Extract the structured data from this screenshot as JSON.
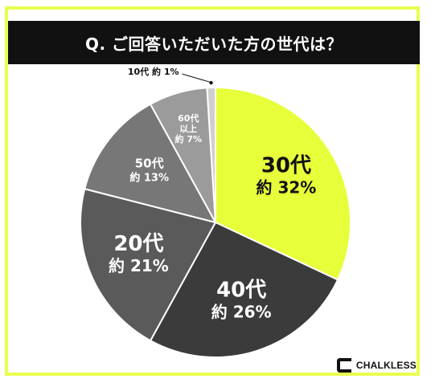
{
  "title": "Q. ご回答いただいた方の世代は？",
  "brand": {
    "name": "CHALKLESS"
  },
  "colors": {
    "frame": "#e9ff4f",
    "titleBar": "#111111",
    "titleText": "#ffffff",
    "slice30s": "#e7ff3a",
    "slice40s": "#3b3b3b",
    "slice20s": "#5a5a5a",
    "slice50s": "#777777",
    "slice60s": "#9b9b9b",
    "slice10s": "#cfcfcf",
    "sliceStroke": "#ffffff"
  },
  "chart_data": {
    "type": "pie",
    "title": "Q. ご回答いただいた方の世代は？",
    "slices": [
      {
        "label": "30代",
        "value_text": "約 32%",
        "value": 32,
        "color": "#e7ff3a",
        "textColor": "#111111"
      },
      {
        "label": "40代",
        "value_text": "約 26%",
        "value": 26,
        "color": "#3b3b3b",
        "textColor": "#ffffff"
      },
      {
        "label": "20代",
        "value_text": "約 21%",
        "value": 21,
        "color": "#5a5a5a",
        "textColor": "#ffffff"
      },
      {
        "label": "50代",
        "value_text": "約 13%",
        "value": 13,
        "color": "#777777",
        "textColor": "#ffffff"
      },
      {
        "label": "60代\n以上",
        "value_text": "約 7%",
        "value": 7,
        "color": "#9b9b9b",
        "textColor": "#ffffff"
      },
      {
        "label": "10代",
        "value_text": "約 1%",
        "value": 1,
        "color": "#cfcfcf",
        "textColor": "#111111"
      }
    ]
  }
}
